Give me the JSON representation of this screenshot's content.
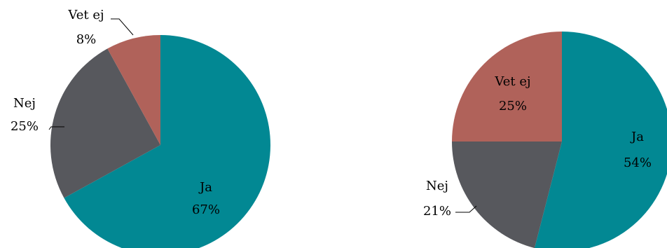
{
  "chart_data": [
    {
      "type": "pie",
      "categories": [
        "Ja",
        "Nej",
        "Vet ej"
      ],
      "values": [
        67,
        25,
        8
      ],
      "labels": [
        {
          "name": "Ja",
          "value": "67%"
        },
        {
          "name": "Nej",
          "value": "25%"
        },
        {
          "name": "Vet ej",
          "value": "8%"
        }
      ],
      "colors": [
        "#028893",
        "#57585d",
        "#b0625a"
      ]
    },
    {
      "type": "pie",
      "categories": [
        "Ja",
        "Nej",
        "Vet ej"
      ],
      "values": [
        54,
        21,
        25
      ],
      "labels": [
        {
          "name": "Ja",
          "value": "54%"
        },
        {
          "name": "Nej",
          "value": "21%"
        },
        {
          "name": "Vet ej",
          "value": "25%"
        }
      ],
      "colors": [
        "#028893",
        "#57585d",
        "#b0625a"
      ]
    }
  ]
}
